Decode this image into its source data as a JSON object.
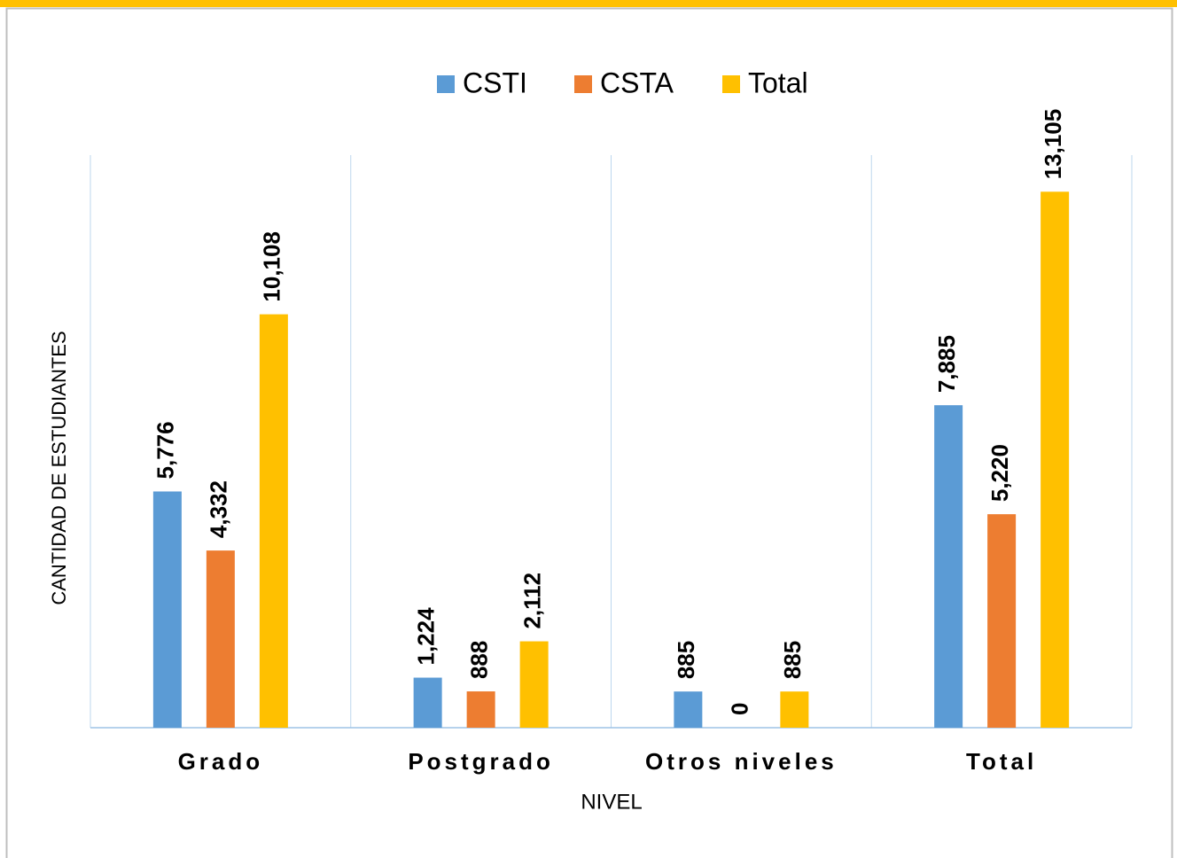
{
  "chart_data": {
    "type": "bar",
    "categories": [
      "Grado",
      "Postgrado",
      "Otros niveles",
      "Total"
    ],
    "series": [
      {
        "name": "CSTI",
        "color": "#5b9bd5",
        "values": [
          5776,
          1224,
          885,
          7885
        ],
        "value_labels": [
          "5,776",
          "1,224",
          "885",
          "7,885"
        ]
      },
      {
        "name": "CSTA",
        "color": "#ed7d31",
        "values": [
          4332,
          888,
          0,
          5220
        ],
        "value_labels": [
          "4,332",
          "888",
          "0",
          "5,220"
        ]
      },
      {
        "name": "Total",
        "color": "#ffc000",
        "values": [
          10108,
          2112,
          885,
          13105
        ],
        "value_labels": [
          "10,108",
          "2,112",
          "885",
          "13,105"
        ]
      }
    ],
    "ylim": [
      0,
      14000
    ],
    "xlabel": "NIVEL",
    "ylabel": "CANTIDAD DE ESTUDIANTES",
    "legend": "top"
  }
}
